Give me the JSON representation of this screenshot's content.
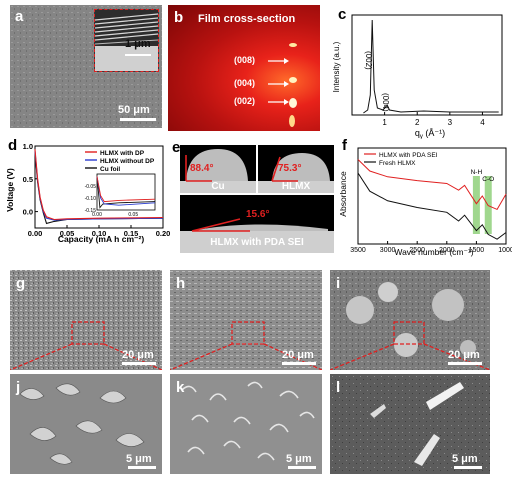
{
  "panels": {
    "a": {
      "label": "a",
      "scale_main": "50 μm",
      "scale_inset": "1 μm"
    },
    "b": {
      "label": "b",
      "title": "Film cross-section",
      "peaks": [
        "(008)",
        "(004)",
        "(002)"
      ]
    },
    "c": {
      "label": "c",
      "ylabel": "Intensity (a.u.)",
      "xlabel": "q",
      "xlabel_sub": "y",
      "xlabel_unit": " (Å⁻¹)",
      "peak1": "(002)",
      "peak2": "(004)"
    },
    "d": {
      "label": "d",
      "ylabel": "Voltage (V)",
      "xlabel": "Capacity (mA h cm⁻²)"
    },
    "e": {
      "label": "e",
      "angle_cu": "88.4°",
      "name_cu": "Cu",
      "angle_hlmx": "75.3°",
      "name_hlmx": "HLMX",
      "angle_pda": "15.6°",
      "name_pda": "HLMX with  PDA SEI"
    },
    "f": {
      "label": "f",
      "ylabel": "Absorbance",
      "xlabel": "Wave number (cm⁻¹)",
      "nh": "N-H",
      "co": "C-O"
    },
    "g": {
      "label": "g",
      "scale": "20 μm"
    },
    "h": {
      "label": "h",
      "scale": "20 μm"
    },
    "i": {
      "label": "i",
      "scale": "20 μm"
    },
    "j": {
      "label": "j",
      "scale": "5 μm"
    },
    "k": {
      "label": "k",
      "scale": "5 μm"
    },
    "l": {
      "label": "l",
      "scale": "5 μm"
    }
  },
  "colors": {
    "red": "#e02020",
    "blue": "#2a3cd0",
    "black": "#111111",
    "green": "#8fd07a"
  },
  "chart_data": [
    {
      "panel": "c",
      "type": "line",
      "xlim": [
        0,
        4.6
      ],
      "ylim": [
        0,
        1
      ],
      "xticks": [
        1,
        2,
        3,
        4
      ],
      "series": [
        {
          "values": [
            [
              0.35,
              0.02
            ],
            [
              0.48,
              0.05
            ],
            [
              0.56,
              0.2
            ],
            [
              0.62,
              0.95
            ],
            [
              0.68,
              0.25
            ],
            [
              0.78,
              0.07
            ],
            [
              0.95,
              0.05
            ],
            [
              1.08,
              0.1
            ],
            [
              1.15,
              0.05
            ],
            [
              1.5,
              0.03
            ],
            [
              2.2,
              0.04
            ],
            [
              3.0,
              0.03
            ],
            [
              3.8,
              0.03
            ],
            [
              4.5,
              0.03
            ]
          ]
        }
      ]
    },
    {
      "panel": "d",
      "type": "line",
      "xlim": [
        0,
        0.2
      ],
      "ylim": [
        -0.25,
        1.0
      ],
      "xticks": [
        0.0,
        0.05,
        0.1,
        0.15,
        0.2
      ],
      "yticks": [
        0.0,
        0.5,
        1.0
      ],
      "legend": [
        "HLMX with DP",
        "HLMX without DP",
        "Cu foil"
      ],
      "series": [
        {
          "name": "HLMX with DP",
          "color": "#e02020",
          "values": [
            [
              0.0,
              0.95
            ],
            [
              0.004,
              0.5
            ],
            [
              0.008,
              0.22
            ],
            [
              0.013,
              0.02
            ],
            [
              0.018,
              -0.08
            ],
            [
              0.03,
              -0.12
            ],
            [
              0.05,
              -0.11
            ],
            [
              0.1,
              -0.1
            ],
            [
              0.2,
              -0.09
            ]
          ]
        },
        {
          "name": "HLMX without DP",
          "color": "#2a3cd0",
          "values": [
            [
              0.0,
              0.92
            ],
            [
              0.004,
              0.48
            ],
            [
              0.008,
              0.2
            ],
            [
              0.013,
              0.0
            ],
            [
              0.018,
              -0.1
            ],
            [
              0.03,
              -0.13
            ],
            [
              0.05,
              -0.12
            ],
            [
              0.1,
              -0.11
            ],
            [
              0.2,
              -0.1
            ]
          ]
        },
        {
          "name": "Cu foil",
          "color": "#111111",
          "values": [
            [
              0.0,
              0.9
            ],
            [
              0.004,
              0.45
            ],
            [
              0.008,
              0.18
            ],
            [
              0.013,
              -0.02
            ],
            [
              0.018,
              -0.18
            ],
            [
              0.03,
              -0.15
            ],
            [
              0.05,
              -0.12
            ],
            [
              0.1,
              -0.11
            ],
            [
              0.2,
              -0.1
            ]
          ]
        }
      ],
      "inset": {
        "xlim": [
          0,
          0.08
        ],
        "ylim": [
          -0.15,
          0.0
        ],
        "xticks": [
          0.0,
          0.05
        ],
        "yticks": [
          -0.05,
          -0.1,
          -0.15
        ],
        "series": [
          {
            "name": "HLMX with DP",
            "color": "#e02020",
            "values": [
              [
                0.0,
                -0.01
              ],
              [
                0.005,
                -0.09
              ],
              [
                0.01,
                -0.115
              ],
              [
                0.03,
                -0.11
              ],
              [
                0.08,
                -0.105
              ]
            ]
          },
          {
            "name": "HLMX without DP",
            "color": "#2a3cd0",
            "values": [
              [
                0.0,
                -0.01
              ],
              [
                0.005,
                -0.1
              ],
              [
                0.01,
                -0.125
              ],
              [
                0.03,
                -0.13
              ],
              [
                0.08,
                -0.12
              ]
            ]
          },
          {
            "name": "Cu foil",
            "color": "#111111",
            "values": [
              [
                0.0,
                -0.01
              ],
              [
                0.004,
                -0.14
              ],
              [
                0.008,
                -0.125
              ],
              [
                0.03,
                -0.12
              ],
              [
                0.08,
                -0.115
              ]
            ]
          }
        ]
      }
    },
    {
      "panel": "f",
      "type": "line",
      "xlim": [
        3500,
        1000
      ],
      "ylim": [
        0,
        1
      ],
      "xticks": [
        3500,
        3000,
        2500,
        2000,
        1500,
        1000
      ],
      "legend": [
        "HLMX with PDA SEI",
        "Fresh HLMX"
      ],
      "bands": [
        {
          "label": "N-H",
          "x": 1500
        },
        {
          "label": "C-O",
          "x": 1300
        }
      ],
      "series": [
        {
          "name": "HLMX with PDA SEI",
          "color": "#e02020",
          "values": [
            [
              3500,
              0.88
            ],
            [
              3300,
              0.76
            ],
            [
              3000,
              0.7
            ],
            [
              2500,
              0.66
            ],
            [
              2000,
              0.63
            ],
            [
              1800,
              0.56
            ],
            [
              1700,
              0.61
            ],
            [
              1500,
              0.42
            ],
            [
              1400,
              0.5
            ],
            [
              1300,
              0.4
            ],
            [
              1150,
              0.36
            ],
            [
              1000,
              0.52
            ]
          ]
        },
        {
          "name": "Fresh HLMX",
          "color": "#111111",
          "values": [
            [
              3500,
              0.74
            ],
            [
              3300,
              0.55
            ],
            [
              3000,
              0.45
            ],
            [
              2500,
              0.38
            ],
            [
              2000,
              0.33
            ],
            [
              1800,
              0.24
            ],
            [
              1700,
              0.3
            ],
            [
              1500,
              0.14
            ],
            [
              1400,
              0.2
            ],
            [
              1300,
              0.1
            ],
            [
              1150,
              0.05
            ],
            [
              1000,
              0.12
            ]
          ]
        }
      ]
    }
  ]
}
